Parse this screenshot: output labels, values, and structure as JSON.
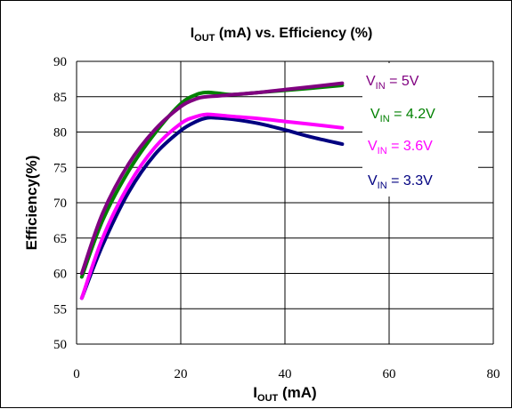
{
  "chart_data": {
    "type": "line",
    "title": {
      "main": "I",
      "sub": "OUT",
      "rest": " (mA) vs. Efficiency (%)"
    },
    "xlabel": {
      "main": "I",
      "sub": "OUT",
      "rest": " (mA)"
    },
    "ylabel": "Efficiency(%)",
    "xlim": [
      0,
      80
    ],
    "ylim": [
      50,
      90
    ],
    "xticks": [
      0,
      20,
      40,
      60,
      80
    ],
    "yticks": [
      50,
      55,
      60,
      65,
      70,
      75,
      80,
      85,
      90
    ],
    "xtick_labels": [
      "0",
      "20",
      "40",
      "60",
      "80"
    ],
    "ytick_labels": [
      "50",
      "55",
      "60",
      "65",
      "70",
      "75",
      "80",
      "85",
      "90"
    ],
    "grid": true,
    "legend_position": "right, labels beside line ends",
    "series": [
      {
        "name": {
          "main": "V",
          "sub": "IN",
          "rest": " = 3.3V"
        },
        "color": "#000080",
        "x": [
          1,
          5,
          10,
          15,
          20,
          23,
          25,
          27,
          30,
          35,
          40,
          45,
          51
        ],
        "y": [
          56.5,
          64,
          71.5,
          76.8,
          80.2,
          81.5,
          82,
          82,
          81.8,
          81.2,
          80.3,
          79.3,
          78.3
        ]
      },
      {
        "name": {
          "main": "V",
          "sub": "IN",
          "rest": " = 3.6V"
        },
        "color": "#ff00ff",
        "x": [
          1,
          5,
          10,
          15,
          20,
          23,
          25,
          27,
          30,
          35,
          40,
          45,
          51
        ],
        "y": [
          56.5,
          65,
          72.5,
          77.8,
          81.2,
          82.2,
          82.5,
          82.4,
          82.2,
          81.9,
          81.5,
          81.1,
          80.6
        ]
      },
      {
        "name": {
          "main": "V",
          "sub": "IN",
          "rest": " = 4.2V"
        },
        "color": "#008000",
        "x": [
          1,
          5,
          10,
          15,
          20,
          23,
          25,
          27,
          30,
          35,
          40,
          45,
          51
        ],
        "y": [
          59.5,
          67.5,
          74.5,
          79.8,
          84,
          85.3,
          85.6,
          85.5,
          85.3,
          85.6,
          85.9,
          86.2,
          86.6
        ]
      },
      {
        "name": {
          "main": "V",
          "sub": "IN",
          "rest": " = 5V"
        },
        "color": "#800080",
        "x": [
          1,
          5,
          10,
          15,
          20,
          23,
          25,
          27,
          30,
          35,
          40,
          45,
          51
        ],
        "y": [
          60,
          68.5,
          75.5,
          80.3,
          83.6,
          84.7,
          85,
          85.1,
          85.3,
          85.6,
          86,
          86.4,
          86.9
        ]
      }
    ]
  }
}
